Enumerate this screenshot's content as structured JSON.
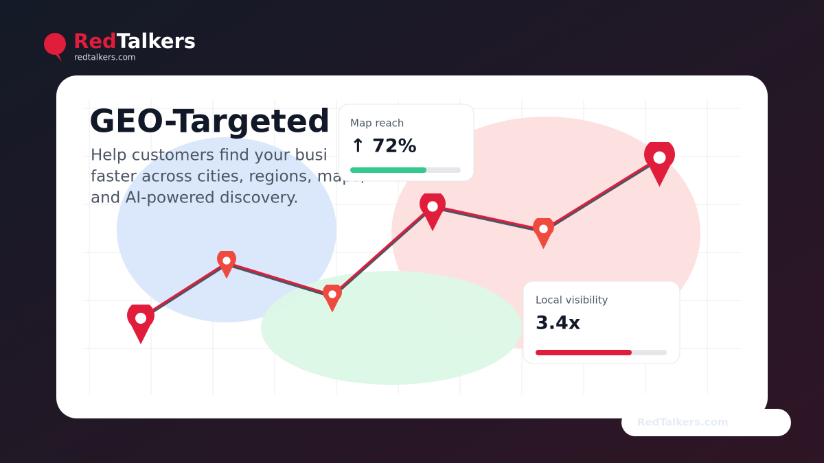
{
  "brand": {
    "name_part1": "Red",
    "name_part2": "Talkers",
    "domain": "redtalkers.com"
  },
  "card": {
    "title": "GEO-Targeted S",
    "subtitle_lines": [
      "Help customers find your busi",
      "faster across cities, regions, maps,",
      "and AI-powered discovery."
    ]
  },
  "stats": [
    {
      "label": "Map reach",
      "value": "↑ 72%"
    },
    {
      "label": "Local visibility",
      "value": "3.4x"
    }
  ],
  "footer": {
    "badge": "RedTalkers.com"
  }
}
